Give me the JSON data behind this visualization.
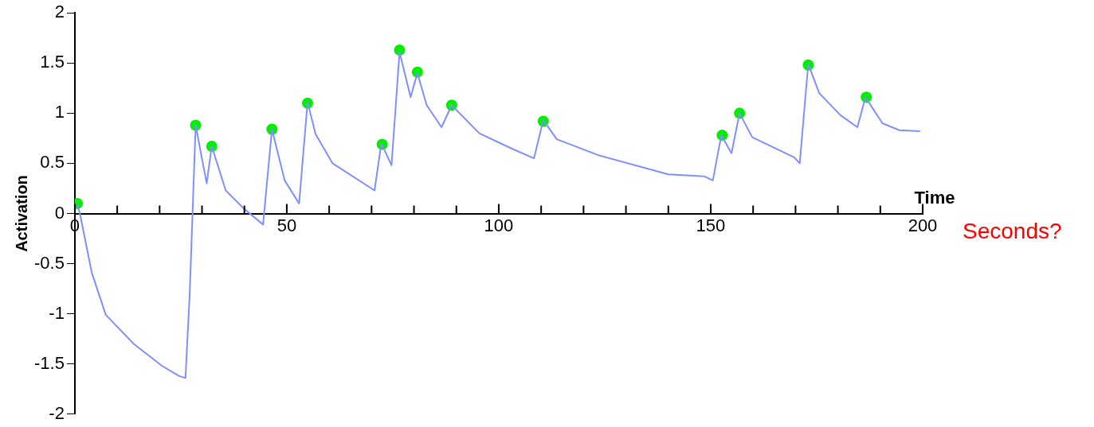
{
  "chart_data": {
    "type": "line",
    "xlabel": "Time",
    "ylabel": "Activation",
    "annotations": [
      "Seconds?"
    ],
    "xlim": [
      0,
      200
    ],
    "ylim": [
      -2,
      2
    ],
    "xticks": [
      0,
      {
        "value": 10,
        "label": null
      },
      {
        "value": 20,
        "label": null
      },
      {
        "value": 30,
        "label": null
      },
      {
        "value": 40,
        "label": null
      },
      50,
      {
        "value": 60,
        "label": null
      },
      {
        "value": 70,
        "label": null
      },
      {
        "value": 80,
        "label": null
      },
      {
        "value": 90,
        "label": null
      },
      100,
      {
        "value": 110,
        "label": null
      },
      {
        "value": 120,
        "label": null
      },
      {
        "value": 130,
        "label": null
      },
      {
        "value": 140,
        "label": null
      },
      150,
      {
        "value": 160,
        "label": null
      },
      {
        "value": 170,
        "label": null
      },
      {
        "value": 180,
        "label": null
      },
      {
        "value": 190,
        "label": null
      },
      200
    ],
    "yticks": [
      -2,
      -1.5,
      -1,
      -0.5,
      0,
      0.5,
      1,
      1.5,
      2
    ],
    "grid": false,
    "legend": false,
    "series": [
      {
        "color": "#7f8fff",
        "marker": "none",
        "x": [
          0.6,
          1.2,
          4,
          7.3,
          13.9,
          20.6,
          24.6,
          26.1,
          27.1,
          28.5,
          31.1,
          32.3,
          35.6,
          39.6,
          44.4,
          46.5,
          49.5,
          52.9,
          54.9,
          56.8,
          60.8,
          70.7,
          72.3,
          74.7,
          76.6,
          79.2,
          80.8,
          83,
          86.5,
          88.9,
          95.4,
          102.4,
          108.3,
          110.5,
          113.7,
          123.6,
          140,
          148.5,
          150.5,
          152.5,
          154.9,
          156.8,
          159.8,
          169.7,
          171,
          173,
          175.6,
          180.6,
          184.6,
          186.5,
          190.5,
          194.5,
          199.4
        ],
        "values": [
          0.1,
          0,
          -0.59,
          -1.01,
          -1.3,
          -1.52,
          -1.62,
          -1.64,
          -0.8,
          0.88,
          0.3,
          0.67,
          0.23,
          0.06,
          -0.11,
          0.84,
          0.33,
          0.1,
          1.11,
          0.79,
          0.5,
          0.23,
          0.7,
          0.48,
          1.61,
          1.16,
          1.4,
          1.08,
          0.86,
          1.08,
          0.8,
          0.66,
          0.55,
          0.93,
          0.74,
          0.58,
          0.39,
          0.37,
          0.33,
          0.78,
          0.6,
          1.0,
          0.76,
          0.56,
          0.5,
          1.49,
          1.2,
          0.98,
          0.86,
          1.16,
          0.9,
          0.83,
          0.82
        ]
      },
      {
        "type": "scatter",
        "color": "#00ee00",
        "marker": "circle",
        "x": [
          0.6,
          28.5,
          32.3,
          46.5,
          54.9,
          72.5,
          76.6,
          80.8,
          88.9,
          110.5,
          152.7,
          156.8,
          173,
          186.7
        ],
        "values": [
          0.1,
          0.88,
          0.67,
          0.84,
          1.1,
          0.69,
          1.63,
          1.41,
          1.08,
          0.92,
          0.78,
          1.0,
          1.48,
          1.16
        ]
      }
    ]
  }
}
